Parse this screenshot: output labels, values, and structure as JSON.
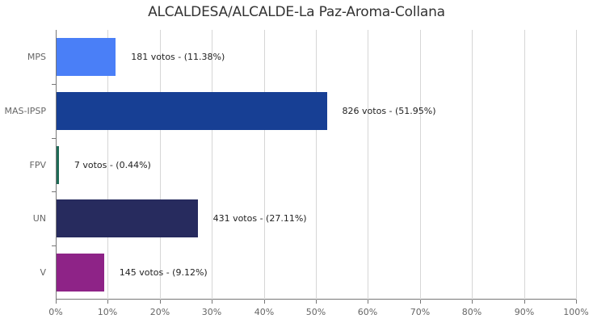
{
  "chart_data": {
    "type": "bar",
    "orientation": "horizontal",
    "title": "ALCALDESA/ALCALDE-La Paz-Aroma-Collana",
    "xlabel": "",
    "ylabel": "",
    "xlim": [
      0,
      100
    ],
    "grid": true,
    "legend": "none",
    "categories": [
      "MPS",
      "MAS-IPSP",
      "FPV",
      "UN",
      "V"
    ],
    "values": [
      11.38,
      51.95,
      0.44,
      27.11,
      9.12
    ],
    "votes": [
      181,
      826,
      7,
      431,
      145
    ],
    "colors": [
      "#4a7ff7",
      "#173f94",
      "#1f6b57",
      "#272b5e",
      "#8e2387"
    ],
    "data_labels": [
      "181 votos - (11.38%)",
      "826 votos - (51.95%)",
      "7 votos - (0.44%)",
      "431 votos - (27.11%)",
      "145 votos - (9.12%)"
    ],
    "x_ticks": [
      "0%",
      "10%",
      "20%",
      "30%",
      "40%",
      "50%",
      "60%",
      "70%",
      "80%",
      "90%",
      "100%"
    ]
  }
}
